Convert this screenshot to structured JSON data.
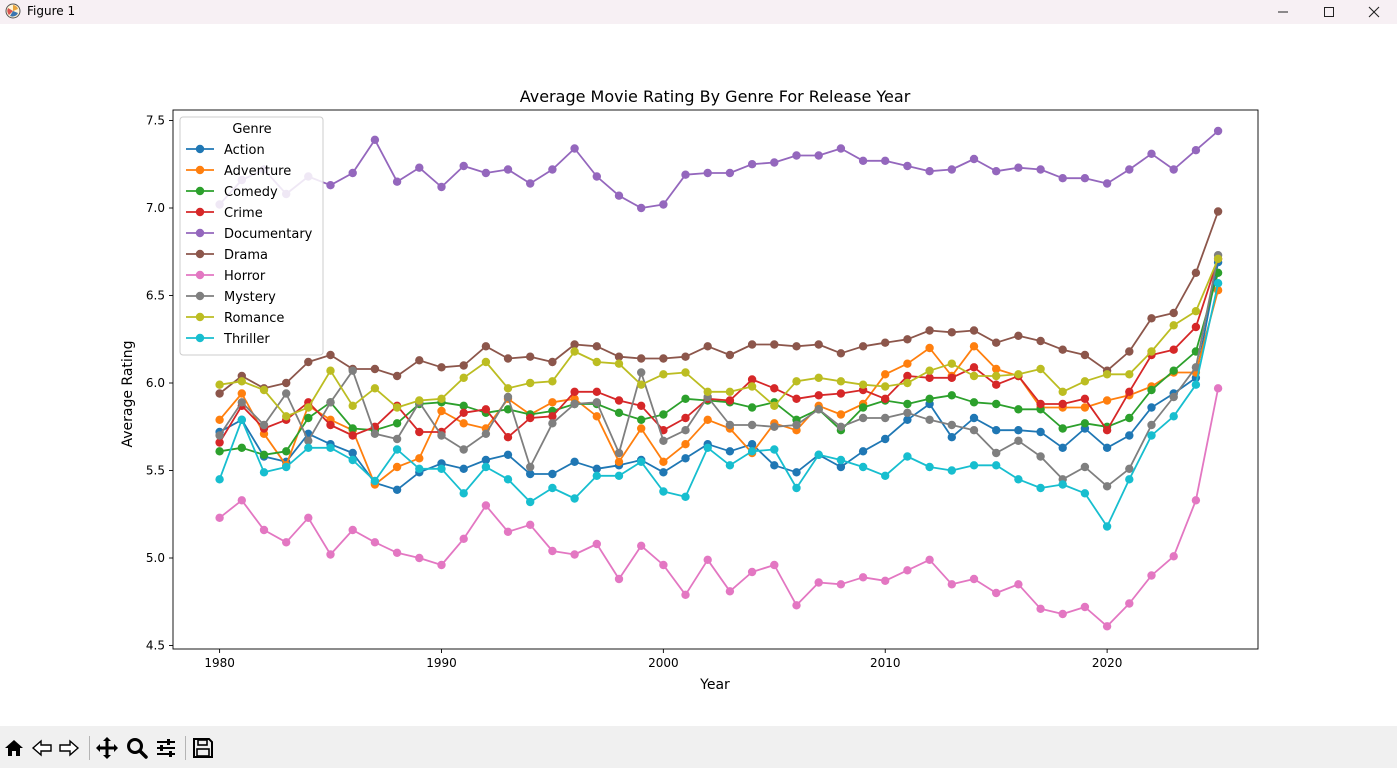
{
  "window": {
    "title": "Figure 1",
    "controls": [
      "minimize",
      "maximize",
      "close"
    ]
  },
  "toolbar": {
    "buttons": [
      {
        "name": "home",
        "icon": "home-icon"
      },
      {
        "name": "back",
        "icon": "arrow-left-icon"
      },
      {
        "name": "forward",
        "icon": "arrow-right-icon"
      },
      {
        "name": "pan",
        "icon": "move-icon"
      },
      {
        "name": "zoom",
        "icon": "magnifier-icon"
      },
      {
        "name": "configure-subplots",
        "icon": "sliders-icon"
      },
      {
        "name": "save",
        "icon": "floppy-disk-icon"
      }
    ]
  },
  "chart_data": {
    "type": "line",
    "title": "Average Movie Rating By Genre For Release Year",
    "xlabel": "Year",
    "ylabel": "Average Rating",
    "xlim": [
      1977.9,
      2026.8
    ],
    "ylim": [
      4.48,
      7.56
    ],
    "xticks": [
      1980,
      1990,
      2000,
      2010,
      2020
    ],
    "yticks": [
      "4.5",
      "5.0",
      "5.5",
      "6.0",
      "6.5",
      "7.0",
      "7.5"
    ],
    "grid": false,
    "legend": {
      "title": "Genre",
      "placement": "upper left"
    },
    "x": [
      1980,
      1981,
      1982,
      1983,
      1984,
      1985,
      1986,
      1987,
      1988,
      1989,
      1990,
      1991,
      1992,
      1993,
      1994,
      1995,
      1996,
      1997,
      1998,
      1999,
      2000,
      2001,
      2002,
      2003,
      2004,
      2005,
      2006,
      2007,
      2008,
      2009,
      2010,
      2011,
      2012,
      2013,
      2014,
      2015,
      2016,
      2017,
      2018,
      2019,
      2020,
      2021,
      2022,
      2023,
      2024,
      2025
    ],
    "series": [
      {
        "name": "Action",
        "color": "#1f77b4",
        "values": [
          5.72,
          5.79,
          5.58,
          5.55,
          5.71,
          5.65,
          5.6,
          5.43,
          5.39,
          5.49,
          5.54,
          5.51,
          5.56,
          5.59,
          5.48,
          5.48,
          5.55,
          5.51,
          5.53,
          5.56,
          5.49,
          5.57,
          5.65,
          5.61,
          5.65,
          5.53,
          5.49,
          5.59,
          5.52,
          5.61,
          5.68,
          5.79,
          5.88,
          5.69,
          5.8,
          5.73,
          5.73,
          5.72,
          5.63,
          5.74,
          5.63,
          5.7,
          5.86,
          5.94,
          6.03,
          6.69
        ]
      },
      {
        "name": "Adventure",
        "color": "#ff7f0e",
        "values": [
          5.79,
          5.94,
          5.71,
          5.53,
          5.87,
          5.79,
          5.73,
          5.42,
          5.52,
          5.57,
          5.84,
          5.77,
          5.74,
          5.91,
          5.82,
          5.89,
          5.91,
          5.81,
          5.55,
          5.74,
          5.55,
          5.65,
          5.79,
          5.74,
          5.6,
          5.77,
          5.73,
          5.87,
          5.82,
          5.88,
          6.05,
          6.11,
          6.2,
          6.04,
          6.21,
          6.08,
          6.04,
          5.86,
          5.86,
          5.86,
          5.9,
          5.93,
          5.98,
          6.06,
          6.06,
          6.53
        ]
      },
      {
        "name": "Comedy",
        "color": "#2ca02c",
        "values": [
          5.61,
          5.63,
          5.59,
          5.61,
          5.8,
          5.89,
          5.74,
          5.73,
          5.77,
          5.88,
          5.89,
          5.87,
          5.83,
          5.85,
          5.82,
          5.84,
          5.88,
          5.88,
          5.83,
          5.79,
          5.82,
          5.91,
          5.9,
          5.89,
          5.86,
          5.89,
          5.79,
          5.85,
          5.73,
          5.86,
          5.9,
          5.88,
          5.91,
          5.93,
          5.89,
          5.88,
          5.85,
          5.85,
          5.74,
          5.77,
          5.75,
          5.8,
          5.96,
          6.07,
          6.18,
          6.63
        ]
      },
      {
        "name": "Crime",
        "color": "#d62728",
        "values": [
          5.66,
          5.87,
          5.74,
          5.79,
          5.89,
          5.76,
          5.7,
          5.75,
          5.87,
          5.72,
          5.72,
          5.83,
          5.85,
          5.69,
          5.8,
          5.81,
          5.95,
          5.95,
          5.9,
          5.87,
          5.73,
          5.8,
          5.91,
          5.9,
          6.02,
          5.97,
          5.91,
          5.93,
          5.94,
          5.96,
          5.91,
          6.04,
          6.03,
          6.03,
          6.09,
          5.99,
          6.04,
          5.88,
          5.88,
          5.91,
          5.73,
          5.95,
          6.16,
          6.19,
          6.32,
          6.71
        ]
      },
      {
        "name": "Documentary",
        "color": "#9467bd",
        "values": [
          7.02,
          7.16,
          7.22,
          7.08,
          7.18,
          7.13,
          7.2,
          7.39,
          7.15,
          7.23,
          7.12,
          7.24,
          7.2,
          7.22,
          7.14,
          7.22,
          7.34,
          7.18,
          7.07,
          7.0,
          7.02,
          7.19,
          7.2,
          7.2,
          7.25,
          7.26,
          7.3,
          7.3,
          7.34,
          7.27,
          7.27,
          7.24,
          7.21,
          7.22,
          7.28,
          7.21,
          7.23,
          7.22,
          7.17,
          7.17,
          7.14,
          7.22,
          7.31,
          7.22,
          7.33,
          7.44
        ]
      },
      {
        "name": "Drama",
        "color": "#8c564b",
        "values": [
          5.94,
          6.04,
          5.97,
          6.0,
          6.12,
          6.16,
          6.08,
          6.08,
          6.04,
          6.13,
          6.09,
          6.1,
          6.21,
          6.14,
          6.15,
          6.12,
          6.22,
          6.21,
          6.15,
          6.14,
          6.14,
          6.15,
          6.21,
          6.16,
          6.22,
          6.22,
          6.21,
          6.22,
          6.17,
          6.21,
          6.23,
          6.25,
          6.3,
          6.29,
          6.3,
          6.23,
          6.27,
          6.24,
          6.19,
          6.16,
          6.07,
          6.18,
          6.37,
          6.4,
          6.63,
          6.98
        ]
      },
      {
        "name": "Horror",
        "color": "#e377c2",
        "values": [
          5.23,
          5.33,
          5.16,
          5.09,
          5.23,
          5.02,
          5.16,
          5.09,
          5.03,
          5.0,
          4.96,
          5.11,
          5.3,
          5.15,
          5.19,
          5.04,
          5.02,
          5.08,
          4.88,
          5.07,
          4.96,
          4.79,
          4.99,
          4.81,
          4.92,
          4.96,
          4.73,
          4.86,
          4.85,
          4.89,
          4.87,
          4.93,
          4.99,
          4.85,
          4.88,
          4.8,
          4.85,
          4.71,
          4.68,
          4.72,
          4.61,
          4.74,
          4.9,
          5.01,
          5.33,
          5.97
        ]
      },
      {
        "name": "Mystery",
        "color": "#7f7f7f",
        "values": [
          5.7,
          5.89,
          5.76,
          5.94,
          5.67,
          5.89,
          6.07,
          5.71,
          5.68,
          5.89,
          5.7,
          5.62,
          5.71,
          5.92,
          5.52,
          5.77,
          5.88,
          5.89,
          5.6,
          6.06,
          5.67,
          5.73,
          5.92,
          5.76,
          5.76,
          5.75,
          5.76,
          5.85,
          5.75,
          5.8,
          5.8,
          5.83,
          5.79,
          5.76,
          5.73,
          5.6,
          5.67,
          5.58,
          5.45,
          5.52,
          5.41,
          5.51,
          5.76,
          5.92,
          6.09,
          6.73
        ]
      },
      {
        "name": "Romance",
        "color": "#bcbd22",
        "values": [
          5.99,
          6.01,
          5.96,
          5.81,
          5.86,
          6.07,
          5.87,
          5.97,
          5.86,
          5.9,
          5.91,
          6.03,
          6.12,
          5.97,
          6.0,
          6.01,
          6.18,
          6.12,
          6.11,
          5.99,
          6.05,
          6.06,
          5.95,
          5.95,
          5.98,
          5.87,
          6.01,
          6.03,
          6.01,
          5.99,
          5.98,
          6.0,
          6.07,
          6.11,
          6.04,
          6.04,
          6.05,
          6.08,
          5.95,
          6.01,
          6.05,
          6.05,
          6.18,
          6.33,
          6.41,
          6.71
        ]
      },
      {
        "name": "Thriller",
        "color": "#17becf",
        "values": [
          5.45,
          5.79,
          5.49,
          5.52,
          5.63,
          5.63,
          5.56,
          5.44,
          5.62,
          5.51,
          5.51,
          5.37,
          5.52,
          5.45,
          5.32,
          5.4,
          5.34,
          5.47,
          5.47,
          5.55,
          5.38,
          5.35,
          5.63,
          5.53,
          5.61,
          5.62,
          5.4,
          5.59,
          5.56,
          5.52,
          5.47,
          5.58,
          5.52,
          5.5,
          5.53,
          5.53,
          5.45,
          5.4,
          5.42,
          5.37,
          5.18,
          5.45,
          5.7,
          5.81,
          5.99,
          6.57
        ]
      }
    ]
  }
}
